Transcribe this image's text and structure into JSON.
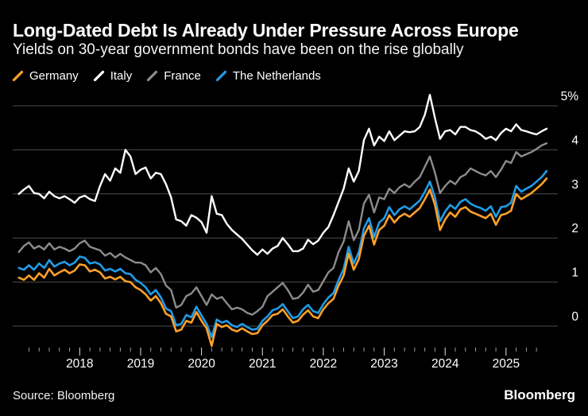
{
  "header": {
    "title": "Long-Dated Debt Is Already Under Pressure Across Europe",
    "subtitle": "Yields on 30-year government bonds have been on the rise globally"
  },
  "legend": {
    "items": [
      {
        "label": "Germany",
        "color": "#FFA028"
      },
      {
        "label": "Italy",
        "color": "#FFFFFF"
      },
      {
        "label": "France",
        "color": "#8C8C8C"
      },
      {
        "label": "The Netherlands",
        "color": "#219CE8"
      }
    ]
  },
  "footer": {
    "source": "Source: Bloomberg",
    "brand": "Bloomberg"
  },
  "chart_data": {
    "type": "line",
    "title": "Long-Dated Debt Is Already Under Pressure Across Europe",
    "subtitle": "Yields on 30-year government bonds have been on the rise globally",
    "unit": "%",
    "x_start_year": 2017.0,
    "x_step_years": 0.0833333,
    "x_range": [
      2016.9,
      2025.85
    ],
    "ylim": [
      -0.6,
      5.35
    ],
    "grid": true,
    "legend_position": "top",
    "yticks": [
      {
        "value": 5,
        "label": "5%"
      },
      {
        "value": 4,
        "label": "4"
      },
      {
        "value": 3,
        "label": "3"
      },
      {
        "value": 2,
        "label": "2"
      },
      {
        "value": 1,
        "label": "1"
      },
      {
        "value": 0,
        "label": "0"
      }
    ],
    "xticks": [
      {
        "value": 2018,
        "label": "2018"
      },
      {
        "value": 2019,
        "label": "2019"
      },
      {
        "value": 2020,
        "label": "2020"
      },
      {
        "value": 2021,
        "label": "2021"
      },
      {
        "value": 2022,
        "label": "2022"
      },
      {
        "value": 2023,
        "label": "2023"
      },
      {
        "value": 2024,
        "label": "2024"
      },
      {
        "value": 2025,
        "label": "2025"
      }
    ],
    "series": [
      {
        "name": "Germany",
        "color": "#FFA028",
        "values": [
          1.1,
          1.05,
          1.15,
          1.05,
          1.2,
          1.1,
          1.3,
          1.15,
          1.22,
          1.28,
          1.2,
          1.26,
          1.4,
          1.38,
          1.24,
          1.28,
          1.22,
          1.08,
          1.12,
          1.06,
          1.12,
          1.02,
          1.0,
          0.88,
          0.82,
          0.72,
          0.58,
          0.68,
          0.52,
          0.28,
          0.22,
          -0.12,
          -0.08,
          0.12,
          0.08,
          0.32,
          0.12,
          -0.05,
          -0.45,
          0.05,
          -0.02,
          0.02,
          -0.08,
          -0.12,
          -0.05,
          -0.12,
          -0.18,
          -0.16,
          0.02,
          0.12,
          0.25,
          0.28,
          0.38,
          0.22,
          0.08,
          0.12,
          0.26,
          0.36,
          0.22,
          0.18,
          0.38,
          0.52,
          0.62,
          0.92,
          1.15,
          1.65,
          1.28,
          1.52,
          2.05,
          2.28,
          1.85,
          2.18,
          2.28,
          2.52,
          2.35,
          2.48,
          2.55,
          2.48,
          2.58,
          2.68,
          2.88,
          3.1,
          2.75,
          2.18,
          2.42,
          2.58,
          2.48,
          2.65,
          2.7,
          2.6,
          2.55,
          2.5,
          2.45,
          2.55,
          2.3,
          2.52,
          2.55,
          2.62,
          3.0,
          2.88,
          2.95,
          3.02,
          3.12,
          3.22,
          3.35
        ]
      },
      {
        "name": "Italy",
        "color": "#FFFFFF",
        "values": [
          3.0,
          3.1,
          3.18,
          3.02,
          3.0,
          2.9,
          3.05,
          2.95,
          2.9,
          2.95,
          2.88,
          2.8,
          2.92,
          2.96,
          2.88,
          2.84,
          3.18,
          3.45,
          3.3,
          3.58,
          3.48,
          4.0,
          3.85,
          3.45,
          3.55,
          3.6,
          3.35,
          3.48,
          3.45,
          3.22,
          2.92,
          2.42,
          2.38,
          2.28,
          2.52,
          2.46,
          2.36,
          2.12,
          2.95,
          2.55,
          2.52,
          2.32,
          2.18,
          2.08,
          1.98,
          1.85,
          1.72,
          1.62,
          1.74,
          1.64,
          1.76,
          1.82,
          2.0,
          1.86,
          1.7,
          1.7,
          1.76,
          1.96,
          1.86,
          1.94,
          2.12,
          2.25,
          2.52,
          2.82,
          3.12,
          3.58,
          3.28,
          3.52,
          4.22,
          4.48,
          4.1,
          4.3,
          4.2,
          4.42,
          4.22,
          4.32,
          4.42,
          4.4,
          4.42,
          4.52,
          4.8,
          5.25,
          4.72,
          4.25,
          4.42,
          4.45,
          4.35,
          4.52,
          4.52,
          4.45,
          4.42,
          4.35,
          4.25,
          4.3,
          4.22,
          4.38,
          4.48,
          4.42,
          4.58,
          4.45,
          4.42,
          4.38,
          4.35,
          4.42,
          4.48
        ]
      },
      {
        "name": "France",
        "color": "#8C8C8C",
        "values": [
          1.68,
          1.82,
          1.9,
          1.76,
          1.82,
          1.74,
          1.88,
          1.74,
          1.8,
          1.76,
          1.7,
          1.76,
          1.88,
          1.94,
          1.8,
          1.76,
          1.72,
          1.6,
          1.66,
          1.56,
          1.64,
          1.56,
          1.5,
          1.44,
          1.44,
          1.38,
          1.22,
          1.32,
          1.18,
          0.92,
          0.82,
          0.42,
          0.48,
          0.68,
          0.74,
          0.88,
          0.68,
          0.48,
          0.72,
          0.62,
          0.66,
          0.52,
          0.38,
          0.42,
          0.38,
          0.3,
          0.26,
          0.34,
          0.44,
          0.68,
          0.78,
          0.88,
          0.98,
          0.82,
          0.62,
          0.64,
          0.76,
          0.94,
          0.78,
          0.82,
          1.02,
          1.22,
          1.32,
          1.68,
          1.92,
          2.38,
          1.95,
          2.18,
          2.78,
          2.98,
          2.58,
          2.92,
          2.88,
          3.12,
          3.02,
          3.15,
          3.22,
          3.15,
          3.28,
          3.38,
          3.62,
          3.85,
          3.48,
          3.02,
          3.18,
          3.3,
          3.22,
          3.38,
          3.44,
          3.58,
          3.52,
          3.46,
          3.42,
          3.52,
          3.38,
          3.55,
          3.75,
          3.7,
          3.95,
          3.85,
          3.9,
          3.95,
          4.02,
          4.1,
          4.15
        ]
      },
      {
        "name": "The Netherlands",
        "color": "#219CE8",
        "values": [
          1.32,
          1.28,
          1.38,
          1.28,
          1.42,
          1.32,
          1.5,
          1.35,
          1.42,
          1.46,
          1.38,
          1.44,
          1.58,
          1.55,
          1.42,
          1.45,
          1.4,
          1.26,
          1.3,
          1.24,
          1.3,
          1.2,
          1.18,
          1.05,
          0.98,
          0.88,
          0.72,
          0.82,
          0.65,
          0.4,
          0.34,
          0.02,
          0.05,
          0.25,
          0.2,
          0.44,
          0.24,
          0.05,
          -0.25,
          0.15,
          0.08,
          0.12,
          0.02,
          -0.02,
          0.05,
          -0.02,
          -0.08,
          -0.06,
          0.12,
          0.22,
          0.36,
          0.4,
          0.5,
          0.34,
          0.18,
          0.22,
          0.38,
          0.48,
          0.34,
          0.3,
          0.5,
          0.65,
          0.75,
          1.05,
          1.3,
          1.8,
          1.42,
          1.68,
          2.22,
          2.45,
          2.02,
          2.35,
          2.45,
          2.7,
          2.52,
          2.65,
          2.72,
          2.65,
          2.75,
          2.85,
          3.05,
          3.28,
          2.92,
          2.38,
          2.6,
          2.75,
          2.66,
          2.82,
          2.88,
          2.78,
          2.72,
          2.68,
          2.62,
          2.72,
          2.48,
          2.7,
          2.72,
          2.8,
          3.18,
          3.05,
          3.12,
          3.18,
          3.28,
          3.38,
          3.52
        ]
      }
    ]
  }
}
